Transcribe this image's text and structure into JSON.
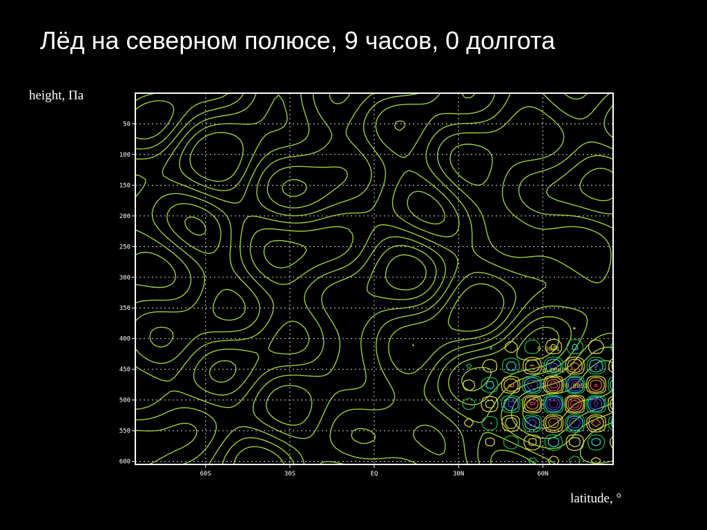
{
  "title": "Лёд на северном полюсе, 9 часов, 0 долгота",
  "y_axis_caption": "height, Па",
  "x_axis_caption": "latitude, °",
  "colors": {
    "background": "#000000",
    "contour_primary": "#9ccf3a",
    "contour_yellow": "#d8d24a",
    "contour_orange": "#e07a2a",
    "contour_red": "#e0306a",
    "contour_cyan": "#2ad0d0",
    "contour_blue": "#3050e0",
    "contour_purple": "#6a1aa0",
    "contour_green": "#22b04a",
    "grid": "#dddddd",
    "frame": "#ffffff"
  },
  "chart_data": {
    "type": "contour",
    "title": "Лёд на северном полюсе, 9 часов, 0 долгота",
    "xlabel": "latitude, °",
    "ylabel": "height, Па",
    "x_ticks": [
      "60S",
      "30S",
      "EQ",
      "30N",
      "60N"
    ],
    "x_tick_values": [
      -60,
      -30,
      0,
      30,
      60
    ],
    "xlim": [
      -85,
      85
    ],
    "y_ticks": [
      "50",
      "100",
      "150",
      "200",
      "250",
      "300",
      "350",
      "400",
      "450",
      "500",
      "550",
      "600"
    ],
    "y_tick_values": [
      50,
      100,
      150,
      200,
      250,
      300,
      350,
      400,
      450,
      500,
      550,
      600
    ],
    "ylim": [
      0,
      605
    ],
    "y_reversed": true,
    "grid": true,
    "contour_labels": [
      {
        "text": "0.0001",
        "lat": 62,
        "p": 420
      },
      {
        "text": "0.0001",
        "lat": 72,
        "p": 480
      },
      {
        "text": "0.0002",
        "lat": 64,
        "p": 455
      }
    ]
  }
}
